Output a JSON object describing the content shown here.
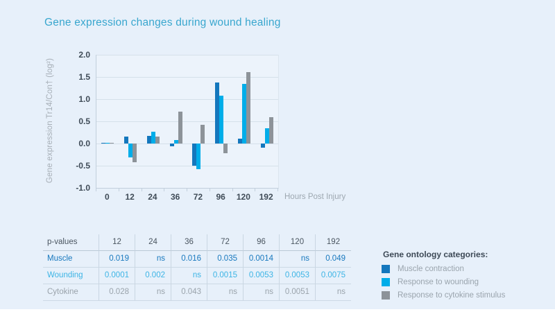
{
  "page": {
    "title": "Gene expression changes during wound healing",
    "background": "#e7f0fa",
    "accent": "#38a6ce"
  },
  "chart_data": {
    "type": "bar",
    "title": "Gene expression changes during wound healing",
    "categories": [
      "0",
      "12",
      "24",
      "36",
      "72",
      "96",
      "120",
      "192"
    ],
    "series": [
      {
        "name": "Muscle contraction",
        "color": "#1477bd",
        "values": [
          0.02,
          0.15,
          0.17,
          -0.06,
          -0.5,
          1.38,
          0.11,
          -0.1
        ]
      },
      {
        "name": "Response to wounding",
        "color": "#00ade9",
        "values": [
          0.02,
          -0.32,
          0.27,
          0.08,
          -0.58,
          1.08,
          1.35,
          0.35
        ]
      },
      {
        "name": "Response to cytokine stimulus",
        "color": "#8d9399",
        "values": [
          0.02,
          -0.42,
          0.16,
          0.72,
          0.42,
          -0.22,
          1.61,
          0.6
        ]
      }
    ],
    "xlabel": "Hours Post Injury",
    "ylabel": "Gene expression Tr14/Con† (log²)",
    "ylim": [
      -1.0,
      2.0
    ],
    "ytick_step": 0.5,
    "yticks": [
      "2.0",
      "1.5",
      "1.0",
      "0.5",
      "0.0",
      "-0.5",
      "-1.0"
    ],
    "grid": true,
    "legend_position": "bottom-right-outside"
  },
  "table": {
    "header": [
      "p-values",
      "12",
      "24",
      "36",
      "72",
      "96",
      "120",
      "192"
    ],
    "rows": [
      {
        "label": "Muscle",
        "color": "#1778be",
        "values": [
          "0.019",
          "ns",
          "0.016",
          "0.035",
          "0.0014",
          "ns",
          "0.049"
        ]
      },
      {
        "label": "Wounding",
        "color": "#3cb4e5",
        "values": [
          "0.0001",
          "0.002",
          "ns",
          "0.0015",
          "0.0053",
          "0.0053",
          "0.0075"
        ]
      },
      {
        "label": "Cytokine",
        "color": "#9aa3ab",
        "values": [
          "0.028",
          "ns",
          "0.043",
          "ns",
          "ns",
          "0.0051",
          "ns"
        ]
      }
    ]
  },
  "legend": {
    "title": "Gene ontology categories:",
    "items": [
      {
        "label": "Muscle contraction",
        "color": "#1477bd"
      },
      {
        "label": "Response to wounding",
        "color": "#00ade9"
      },
      {
        "label": "Response to cytokine stimulus",
        "color": "#8d9399"
      }
    ]
  }
}
